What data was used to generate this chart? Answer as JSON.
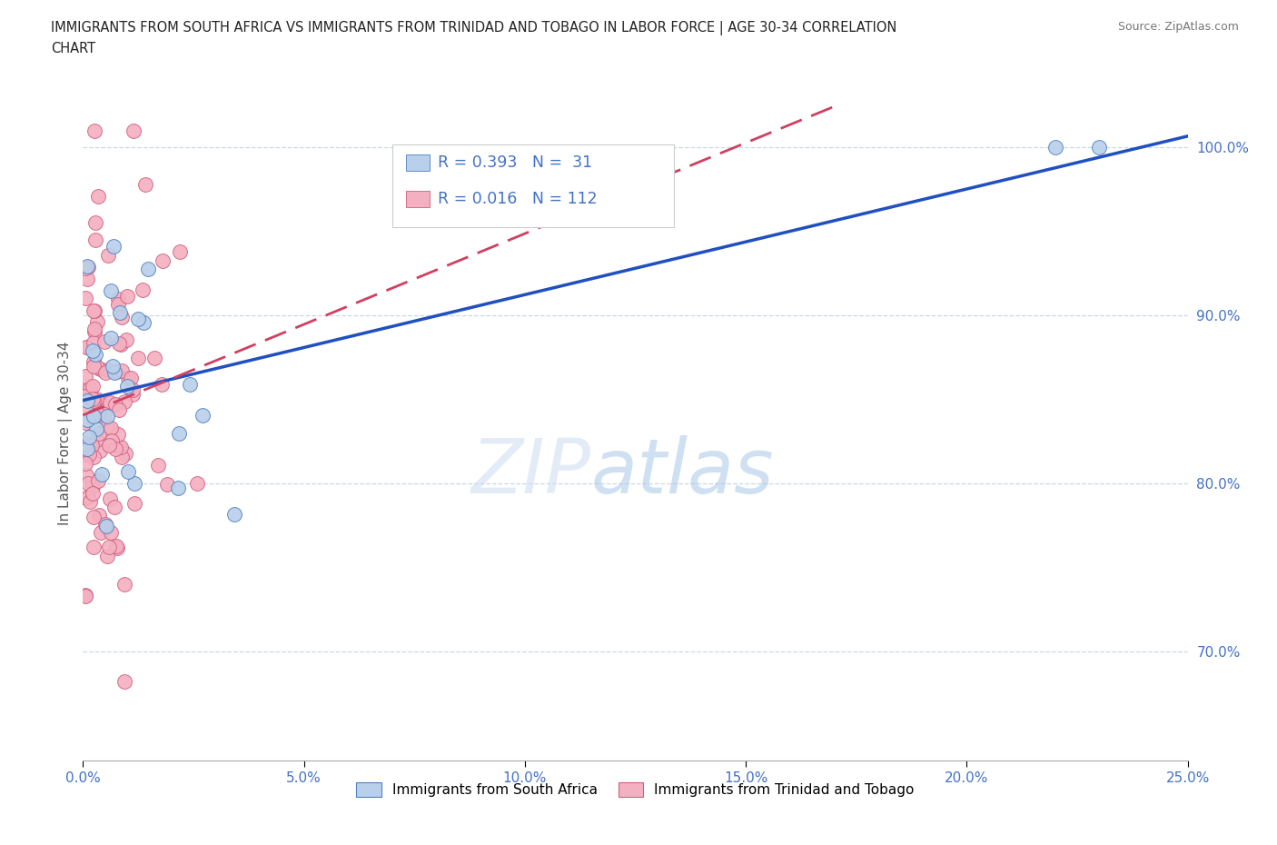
{
  "title_line1": "IMMIGRANTS FROM SOUTH AFRICA VS IMMIGRANTS FROM TRINIDAD AND TOBAGO IN LABOR FORCE | AGE 30-34 CORRELATION",
  "title_line2": "CHART",
  "source": "Source: ZipAtlas.com",
  "ylabel": "In Labor Force | Age 30-34",
  "xlim": [
    0.0,
    0.25
  ],
  "ylim": [
    0.635,
    1.025
  ],
  "xticks": [
    0.0,
    0.05,
    0.1,
    0.15,
    0.2,
    0.25
  ],
  "xticklabels": [
    "0.0%",
    "5.0%",
    "10.0%",
    "15.0%",
    "20.0%",
    "25.0%"
  ],
  "yticks": [
    0.7,
    0.8,
    0.9,
    1.0
  ],
  "yticklabels": [
    "70.0%",
    "80.0%",
    "90.0%",
    "100.0%"
  ],
  "r_blue": 0.393,
  "n_blue": 31,
  "r_pink": 0.016,
  "n_pink": 112,
  "blue_fill": "#b8d0ea",
  "blue_edge": "#5080c0",
  "pink_fill": "#f4b0c0",
  "pink_edge": "#d06080",
  "blue_line": "#2050c0",
  "pink_line": "#d04060",
  "axis_color": "#4472c4",
  "grid_color": "#c8d8ec",
  "legend_label_blue": "Immigrants from South Africa",
  "legend_label_pink": "Immigrants from Trinidad and Tobago"
}
